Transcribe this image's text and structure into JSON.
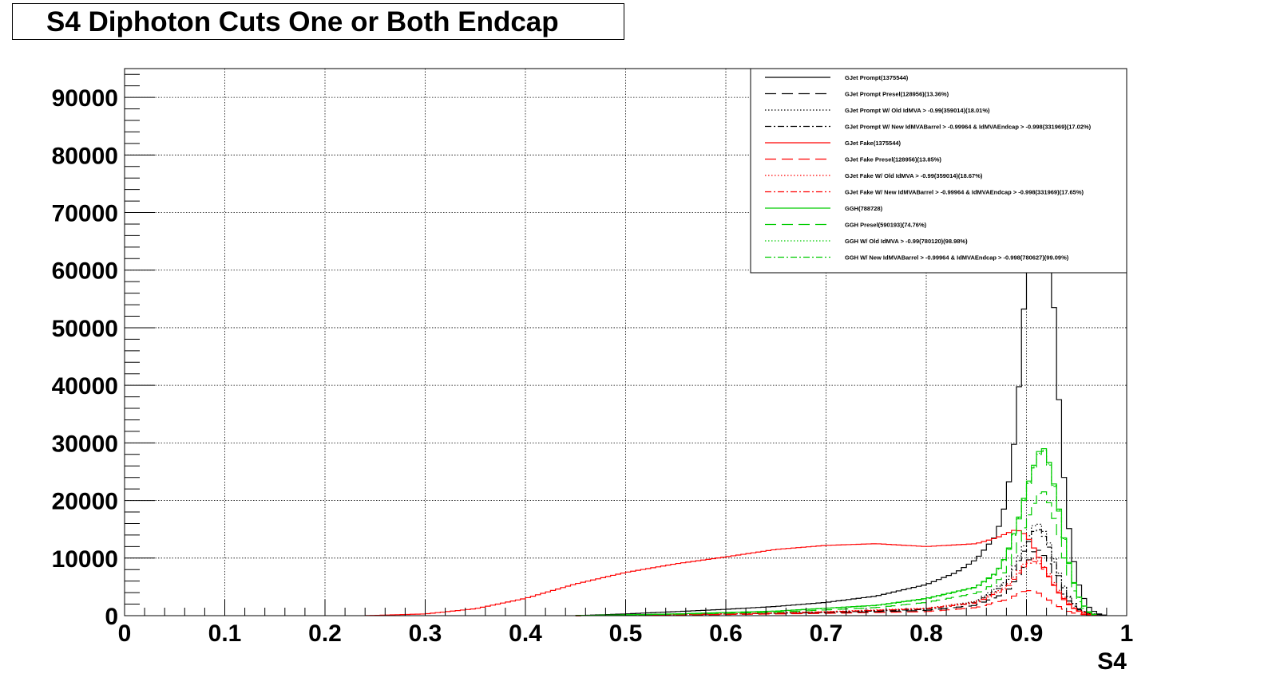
{
  "title": "S4 Diphoton Cuts One or Both Endcap",
  "chart_data": {
    "type": "line",
    "title": "S4 Diphoton Cuts One or Both Endcap",
    "xlabel": "S4",
    "ylabel": "",
    "xlim": [
      0,
      1
    ],
    "ylim": [
      0,
      95000
    ],
    "x_ticks": [
      "0",
      "0.1",
      "0.2",
      "0.3",
      "0.4",
      "0.5",
      "0.6",
      "0.7",
      "0.8",
      "0.9",
      "1"
    ],
    "y_ticks": [
      "0",
      "10000",
      "20000",
      "30000",
      "40000",
      "50000",
      "60000",
      "70000",
      "80000",
      "90000"
    ],
    "grid": true,
    "legend_position": "top-right",
    "series": [
      {
        "name": "GJet Prompt(1375544)",
        "color": "#000000",
        "dash": "solid",
        "x": [
          0.45,
          0.5,
          0.55,
          0.6,
          0.65,
          0.7,
          0.75,
          0.8,
          0.83,
          0.85,
          0.87,
          0.88,
          0.89,
          0.9,
          0.905,
          0.91,
          0.915,
          0.92,
          0.925,
          0.93,
          0.935,
          0.94,
          0.95,
          0.96,
          0.97,
          0.98
        ],
        "y": [
          0,
          300,
          700,
          1100,
          1600,
          2300,
          3400,
          5400,
          7500,
          9800,
          14000,
          20000,
          33000,
          60000,
          85000,
          94000,
          90000,
          78000,
          62000,
          45000,
          30000,
          18000,
          6500,
          1800,
          400,
          0
        ]
      },
      {
        "name": "GJet Prompt Presel(128956)(13.36%)",
        "color": "#000000",
        "dash": "long",
        "x": [
          0.45,
          0.6,
          0.7,
          0.8,
          0.85,
          0.88,
          0.9,
          0.91,
          0.92,
          0.93,
          0.94,
          0.95,
          0.96,
          0.98
        ],
        "y": [
          0,
          200,
          500,
          900,
          1800,
          4000,
          9000,
          11800,
          10000,
          6000,
          3000,
          1200,
          400,
          0
        ]
      },
      {
        "name": "GJet Prompt W/ Old IdMVA > -0.99(359014)(18.01%)",
        "color": "#000000",
        "dash": "dotted",
        "x": [
          0.45,
          0.6,
          0.7,
          0.8,
          0.85,
          0.88,
          0.9,
          0.91,
          0.92,
          0.93,
          0.94,
          0.95,
          0.96,
          0.98
        ],
        "y": [
          0,
          300,
          600,
          1200,
          2500,
          6000,
          13000,
          16500,
          14000,
          8500,
          4000,
          1500,
          500,
          0
        ]
      },
      {
        "name": "GJet Prompt W/ New IdMVABarrel > -0.99964 & IdMVAEndcap > -0.998(331969)(17.02%)",
        "color": "#000000",
        "dash": "dashdot",
        "x": [
          0.45,
          0.6,
          0.7,
          0.8,
          0.85,
          0.88,
          0.9,
          0.91,
          0.92,
          0.93,
          0.94,
          0.95,
          0.96,
          0.98
        ],
        "y": [
          0,
          280,
          550,
          1100,
          2300,
          5500,
          12000,
          15500,
          13200,
          8000,
          3800,
          1400,
          450,
          0
        ]
      },
      {
        "name": "GJet Fake(1375544)",
        "color": "#ff0000",
        "dash": "solid",
        "x": [
          0.24,
          0.3,
          0.35,
          0.4,
          0.45,
          0.5,
          0.55,
          0.6,
          0.65,
          0.7,
          0.75,
          0.8,
          0.85,
          0.87,
          0.89,
          0.9,
          0.91,
          0.92,
          0.93,
          0.94,
          0.95,
          0.96,
          0.97
        ],
        "y": [
          0,
          300,
          1200,
          3000,
          5500,
          7500,
          9000,
          10200,
          11500,
          12200,
          12500,
          12000,
          12500,
          13500,
          15000,
          14000,
          11000,
          7500,
          4500,
          2200,
          900,
          250,
          0
        ]
      },
      {
        "name": "GJet Fake Presel(128956)(13.85%)",
        "color": "#ff0000",
        "dash": "long",
        "x": [
          0.45,
          0.6,
          0.7,
          0.8,
          0.85,
          0.88,
          0.9,
          0.91,
          0.92,
          0.93,
          0.94,
          0.95,
          0.97
        ],
        "y": [
          0,
          200,
          400,
          700,
          1400,
          2800,
          4400,
          4200,
          3000,
          1800,
          900,
          300,
          0
        ]
      },
      {
        "name": "GJet Fake W/ Old IdMVA > -0.99(359014)(18.67%)",
        "color": "#ff0000",
        "dash": "dotted",
        "x": [
          0.45,
          0.6,
          0.7,
          0.8,
          0.85,
          0.88,
          0.9,
          0.91,
          0.92,
          0.93,
          0.94,
          0.95,
          0.97
        ],
        "y": [
          0,
          300,
          700,
          1300,
          2400,
          5000,
          9500,
          10000,
          8000,
          5000,
          2600,
          1000,
          0
        ]
      },
      {
        "name": "GJet Fake W/ New IdMVABarrel > -0.99964 & IdMVAEndcap > -0.998(331969)(17.65%)",
        "color": "#ff0000",
        "dash": "dashdot",
        "x": [
          0.45,
          0.6,
          0.7,
          0.8,
          0.85,
          0.88,
          0.9,
          0.91,
          0.92,
          0.93,
          0.94,
          0.95,
          0.97
        ],
        "y": [
          0,
          280,
          650,
          1200,
          2200,
          4700,
          9000,
          9500,
          7600,
          4700,
          2400,
          900,
          0
        ]
      },
      {
        "name": "GGH(788728)",
        "color": "#00cc00",
        "dash": "solid",
        "x": [
          0.45,
          0.55,
          0.65,
          0.75,
          0.8,
          0.85,
          0.87,
          0.88,
          0.89,
          0.9,
          0.91,
          0.915,
          0.92,
          0.93,
          0.94,
          0.95,
          0.96,
          0.97
        ],
        "y": [
          0,
          300,
          800,
          1800,
          3000,
          5000,
          7500,
          10500,
          15500,
          22000,
          27500,
          29500,
          28500,
          21000,
          11000,
          4000,
          900,
          0
        ]
      },
      {
        "name": "GGH Presel(590193)(74.76%)",
        "color": "#00cc00",
        "dash": "long",
        "x": [
          0.45,
          0.55,
          0.65,
          0.75,
          0.8,
          0.85,
          0.87,
          0.88,
          0.89,
          0.9,
          0.91,
          0.915,
          0.92,
          0.93,
          0.94,
          0.95,
          0.96,
          0.97
        ],
        "y": [
          0,
          250,
          600,
          1400,
          2300,
          3900,
          5700,
          8000,
          11500,
          16500,
          20500,
          22000,
          21000,
          15500,
          8200,
          3000,
          700,
          0
        ]
      },
      {
        "name": "GGH W/ Old IdMVA > -0.99(780120)(98.98%)",
        "color": "#00cc00",
        "dash": "dotted",
        "x": [
          0.45,
          0.55,
          0.65,
          0.75,
          0.8,
          0.85,
          0.87,
          0.88,
          0.89,
          0.9,
          0.91,
          0.915,
          0.92,
          0.93,
          0.94,
          0.95,
          0.96,
          0.97
        ],
        "y": [
          0,
          300,
          780,
          1780,
          2950,
          4950,
          7400,
          10400,
          15300,
          21800,
          27200,
          29200,
          28200,
          20800,
          10900,
          3950,
          880,
          0
        ]
      },
      {
        "name": "GGH W/ New IdMVABarrel > -0.99964 & IdMVAEndcap > -0.998(780627)(99.09%)",
        "color": "#00cc00",
        "dash": "dashdot",
        "x": [
          0.45,
          0.55,
          0.65,
          0.75,
          0.8,
          0.85,
          0.87,
          0.88,
          0.89,
          0.9,
          0.91,
          0.915,
          0.92,
          0.93,
          0.94,
          0.95,
          0.96,
          0.97
        ],
        "y": [
          0,
          295,
          770,
          1760,
          2920,
          4920,
          7350,
          10300,
          15200,
          21600,
          27000,
          29000,
          28000,
          20600,
          10800,
          3900,
          870,
          0
        ]
      }
    ]
  }
}
